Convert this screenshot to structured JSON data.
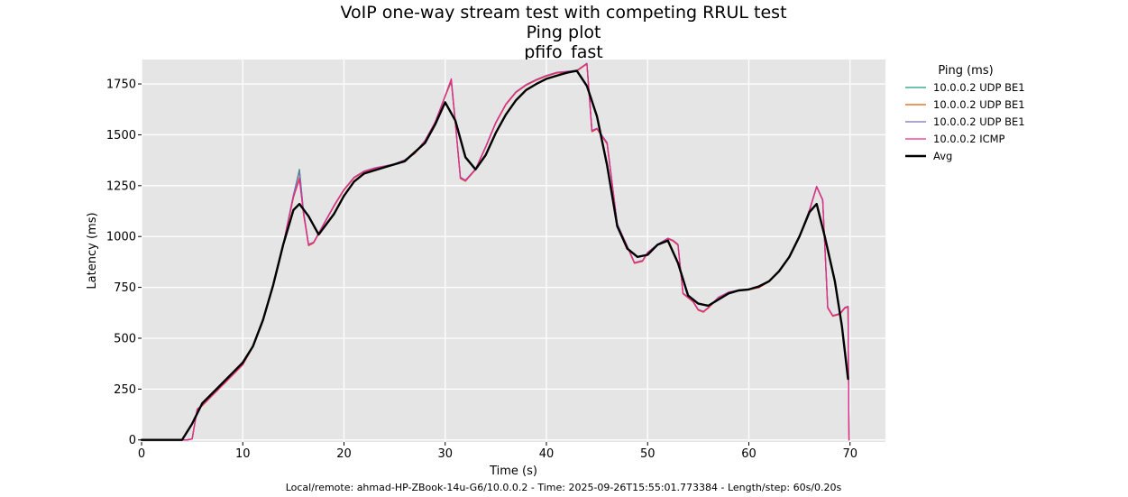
{
  "chart_data": {
    "type": "line",
    "title_lines": [
      "VoIP one-way stream test with competing RRUL test",
      "Ping plot",
      "pfifo_fast"
    ],
    "xlabel": "Time (s)",
    "ylabel": "Latency (ms)",
    "xlim": [
      0,
      73.5
    ],
    "ylim": [
      -10,
      1870
    ],
    "xticks": [
      0,
      10,
      20,
      30,
      40,
      50,
      60,
      70
    ],
    "yticks": [
      0,
      250,
      500,
      750,
      1000,
      1250,
      1500,
      1750
    ],
    "grid": true,
    "legend_title": "Ping (ms)",
    "legend_position": "right-outside",
    "footer": "Local/remote: ahmad-HP-ZBook-14u-G6/10.0.0.2 - Time: 2025-09-26T15:55:01.773384 - Length/step: 60s/0.20s",
    "series": [
      {
        "name": "10.0.0.2 UDP BE1",
        "color": "#1b9e77",
        "width": 1.3,
        "x": [
          0,
          4,
          4.5,
          5,
          5.5,
          6,
          7,
          8,
          9,
          10,
          11,
          12,
          13,
          14,
          15,
          15.6,
          16,
          16.5,
          17,
          18,
          19,
          20,
          21,
          22,
          23,
          24,
          25,
          26,
          27,
          28,
          29,
          30,
          30.6,
          31,
          31.5,
          32,
          33,
          34,
          35,
          36,
          37,
          38,
          39,
          40,
          41,
          42,
          43,
          44,
          44.5,
          45,
          46,
          47,
          48,
          48.7,
          49.5,
          50,
          51,
          52,
          52.5,
          53,
          53.5,
          54,
          54.5,
          55,
          55.5,
          56,
          57,
          58,
          59,
          60,
          61,
          62,
          63,
          64,
          65,
          66,
          66.7,
          67.3,
          67.8,
          68.3,
          69,
          69.5,
          69.8,
          69.9
        ],
        "values": [
          0,
          0,
          0,
          5,
          150,
          170,
          220,
          270,
          320,
          370,
          460,
          590,
          760,
          960,
          1200,
          1330,
          1120,
          960,
          970,
          1060,
          1150,
          1230,
          1290,
          1320,
          1335,
          1345,
          1355,
          1375,
          1410,
          1470,
          1560,
          1690,
          1760,
          1560,
          1290,
          1275,
          1330,
          1440,
          1560,
          1650,
          1710,
          1745,
          1770,
          1790,
          1805,
          1810,
          1815,
          1850,
          1520,
          1530,
          1460,
          1060,
          950,
          870,
          880,
          920,
          960,
          990,
          980,
          960,
          720,
          700,
          680,
          640,
          630,
          650,
          700,
          725,
          735,
          740,
          750,
          780,
          830,
          900,
          1000,
          1130,
          1245,
          1180,
          650,
          610,
          620,
          650,
          655,
          0
        ]
      },
      {
        "name": "10.0.0.2 UDP BE1",
        "color": "#d95f02",
        "width": 1.3,
        "x": [
          0,
          4,
          4.5,
          5,
          5.5,
          6,
          7,
          8,
          9,
          10,
          11,
          12,
          13,
          14,
          15,
          15.6,
          16,
          16.5,
          17,
          18,
          19,
          20,
          21,
          22,
          23,
          24,
          25,
          26,
          27,
          28,
          29,
          30,
          30.6,
          31,
          31.5,
          32,
          33,
          34,
          35,
          36,
          37,
          38,
          39,
          40,
          41,
          42,
          43,
          44,
          44.5,
          45,
          46,
          47,
          48,
          48.7,
          49.5,
          50,
          51,
          52,
          52.5,
          53,
          53.5,
          54,
          54.5,
          55,
          55.5,
          56,
          57,
          58,
          59,
          60,
          61,
          62,
          63,
          64,
          65,
          66,
          66.7,
          67.3,
          67.8,
          68.3,
          69,
          69.5,
          69.8,
          69.9
        ],
        "values": [
          0,
          0,
          0,
          5,
          148,
          168,
          218,
          268,
          318,
          368,
          458,
          588,
          758,
          958,
          1190,
          1290,
          1110,
          955,
          968,
          1058,
          1148,
          1228,
          1288,
          1318,
          1333,
          1343,
          1353,
          1373,
          1408,
          1468,
          1558,
          1688,
          1765,
          1555,
          1285,
          1272,
          1328,
          1438,
          1558,
          1648,
          1708,
          1743,
          1768,
          1788,
          1803,
          1808,
          1813,
          1848,
          1515,
          1528,
          1455,
          1055,
          948,
          868,
          878,
          918,
          958,
          988,
          978,
          958,
          718,
          698,
          678,
          638,
          628,
          648,
          698,
          723,
          733,
          738,
          748,
          778,
          828,
          898,
          998,
          1128,
          1243,
          1178,
          648,
          608,
          618,
          648,
          653,
          0
        ]
      },
      {
        "name": "10.0.0.2 UDP BE1",
        "color": "#7570b3",
        "width": 1.3,
        "x": [
          0,
          4,
          4.5,
          5,
          5.5,
          6,
          7,
          8,
          9,
          10,
          11,
          12,
          13,
          14,
          15,
          15.6,
          16,
          16.5,
          17,
          18,
          19,
          20,
          21,
          22,
          23,
          24,
          25,
          26,
          27,
          28,
          29,
          30,
          30.6,
          31,
          31.5,
          32,
          33,
          34,
          35,
          36,
          37,
          38,
          39,
          40,
          41,
          42,
          43,
          44,
          44.5,
          45,
          46,
          47,
          48,
          48.7,
          49.5,
          50,
          51,
          52,
          52.5,
          53,
          53.5,
          54,
          54.5,
          55,
          55.5,
          56,
          57,
          58,
          59,
          60,
          61,
          62,
          63,
          64,
          65,
          66,
          66.7,
          67.3,
          67.8,
          68.3,
          69,
          69.5,
          69.8,
          69.9
        ],
        "values": [
          0,
          0,
          0,
          5,
          152,
          172,
          222,
          272,
          322,
          372,
          462,
          592,
          762,
          962,
          1205,
          1320,
          1125,
          962,
          972,
          1062,
          1152,
          1232,
          1292,
          1322,
          1337,
          1347,
          1357,
          1377,
          1412,
          1472,
          1562,
          1692,
          1770,
          1565,
          1292,
          1277,
          1332,
          1442,
          1562,
          1652,
          1712,
          1747,
          1772,
          1792,
          1807,
          1812,
          1817,
          1852,
          1522,
          1532,
          1462,
          1062,
          952,
          872,
          882,
          922,
          962,
          992,
          982,
          962,
          722,
          702,
          682,
          642,
          632,
          652,
          702,
          727,
          737,
          742,
          752,
          782,
          832,
          902,
          1002,
          1132,
          1247,
          1182,
          652,
          612,
          622,
          652,
          657,
          0
        ]
      },
      {
        "name": "10.0.0.2 ICMP",
        "color": "#e7298a",
        "width": 1.3,
        "x": [
          0,
          4,
          4.5,
          5,
          5.5,
          6,
          7,
          8,
          9,
          10,
          11,
          12,
          13,
          14,
          15,
          15.6,
          16,
          16.5,
          17,
          18,
          19,
          20,
          21,
          22,
          23,
          24,
          25,
          26,
          27,
          28,
          29,
          30,
          30.6,
          31,
          31.5,
          32,
          33,
          34,
          35,
          36,
          37,
          38,
          39,
          40,
          41,
          42,
          43,
          44,
          44.5,
          45,
          46,
          47,
          48,
          48.7,
          49.5,
          50,
          51,
          52,
          52.5,
          53,
          53.5,
          54,
          54.5,
          55,
          55.5,
          56,
          57,
          58,
          59,
          60,
          61,
          62,
          63,
          64,
          65,
          66,
          66.7,
          67.3,
          67.8,
          68.3,
          69,
          69.5,
          69.8,
          69.9
        ],
        "values": [
          0,
          0,
          0,
          5,
          150,
          170,
          220,
          270,
          320,
          370,
          460,
          590,
          760,
          960,
          1195,
          1280,
          1115,
          958,
          970,
          1060,
          1150,
          1230,
          1290,
          1320,
          1335,
          1345,
          1355,
          1375,
          1410,
          1470,
          1560,
          1690,
          1775,
          1560,
          1288,
          1274,
          1330,
          1440,
          1560,
          1650,
          1710,
          1745,
          1770,
          1790,
          1805,
          1810,
          1815,
          1850,
          1518,
          1530,
          1458,
          1058,
          950,
          870,
          880,
          920,
          960,
          990,
          980,
          960,
          720,
          700,
          680,
          640,
          630,
          650,
          700,
          725,
          735,
          740,
          750,
          780,
          830,
          900,
          1000,
          1130,
          1245,
          1180,
          650,
          610,
          620,
          650,
          655,
          0
        ]
      },
      {
        "name": "Avg",
        "color": "#000000",
        "width": 2.4,
        "x": [
          0,
          4,
          5,
          6,
          7,
          8,
          9,
          10,
          11,
          12,
          13,
          14,
          15,
          15.6,
          16.5,
          17.5,
          19,
          20,
          21,
          22,
          24,
          26,
          28,
          29,
          30,
          31,
          32,
          33,
          34,
          35,
          36,
          37,
          38,
          39,
          40,
          41,
          42,
          43,
          44,
          45,
          46,
          47,
          48,
          49,
          50,
          51,
          52,
          53,
          54,
          55,
          56,
          57,
          58,
          59,
          60,
          61,
          62,
          63,
          64,
          65,
          66,
          66.7,
          67.5,
          68.5,
          69.2,
          69.8
        ],
        "values": [
          0,
          0,
          80,
          180,
          230,
          280,
          330,
          380,
          460,
          590,
          760,
          960,
          1130,
          1160,
          1100,
          1010,
          1110,
          1200,
          1270,
          1310,
          1340,
          1370,
          1460,
          1550,
          1660,
          1570,
          1390,
          1330,
          1400,
          1510,
          1600,
          1670,
          1720,
          1750,
          1775,
          1790,
          1805,
          1815,
          1740,
          1590,
          1350,
          1050,
          940,
          900,
          910,
          960,
          980,
          870,
          710,
          670,
          660,
          690,
          720,
          735,
          740,
          755,
          780,
          830,
          900,
          1000,
          1120,
          1160,
          1000,
          780,
          560,
          300
        ]
      }
    ]
  }
}
